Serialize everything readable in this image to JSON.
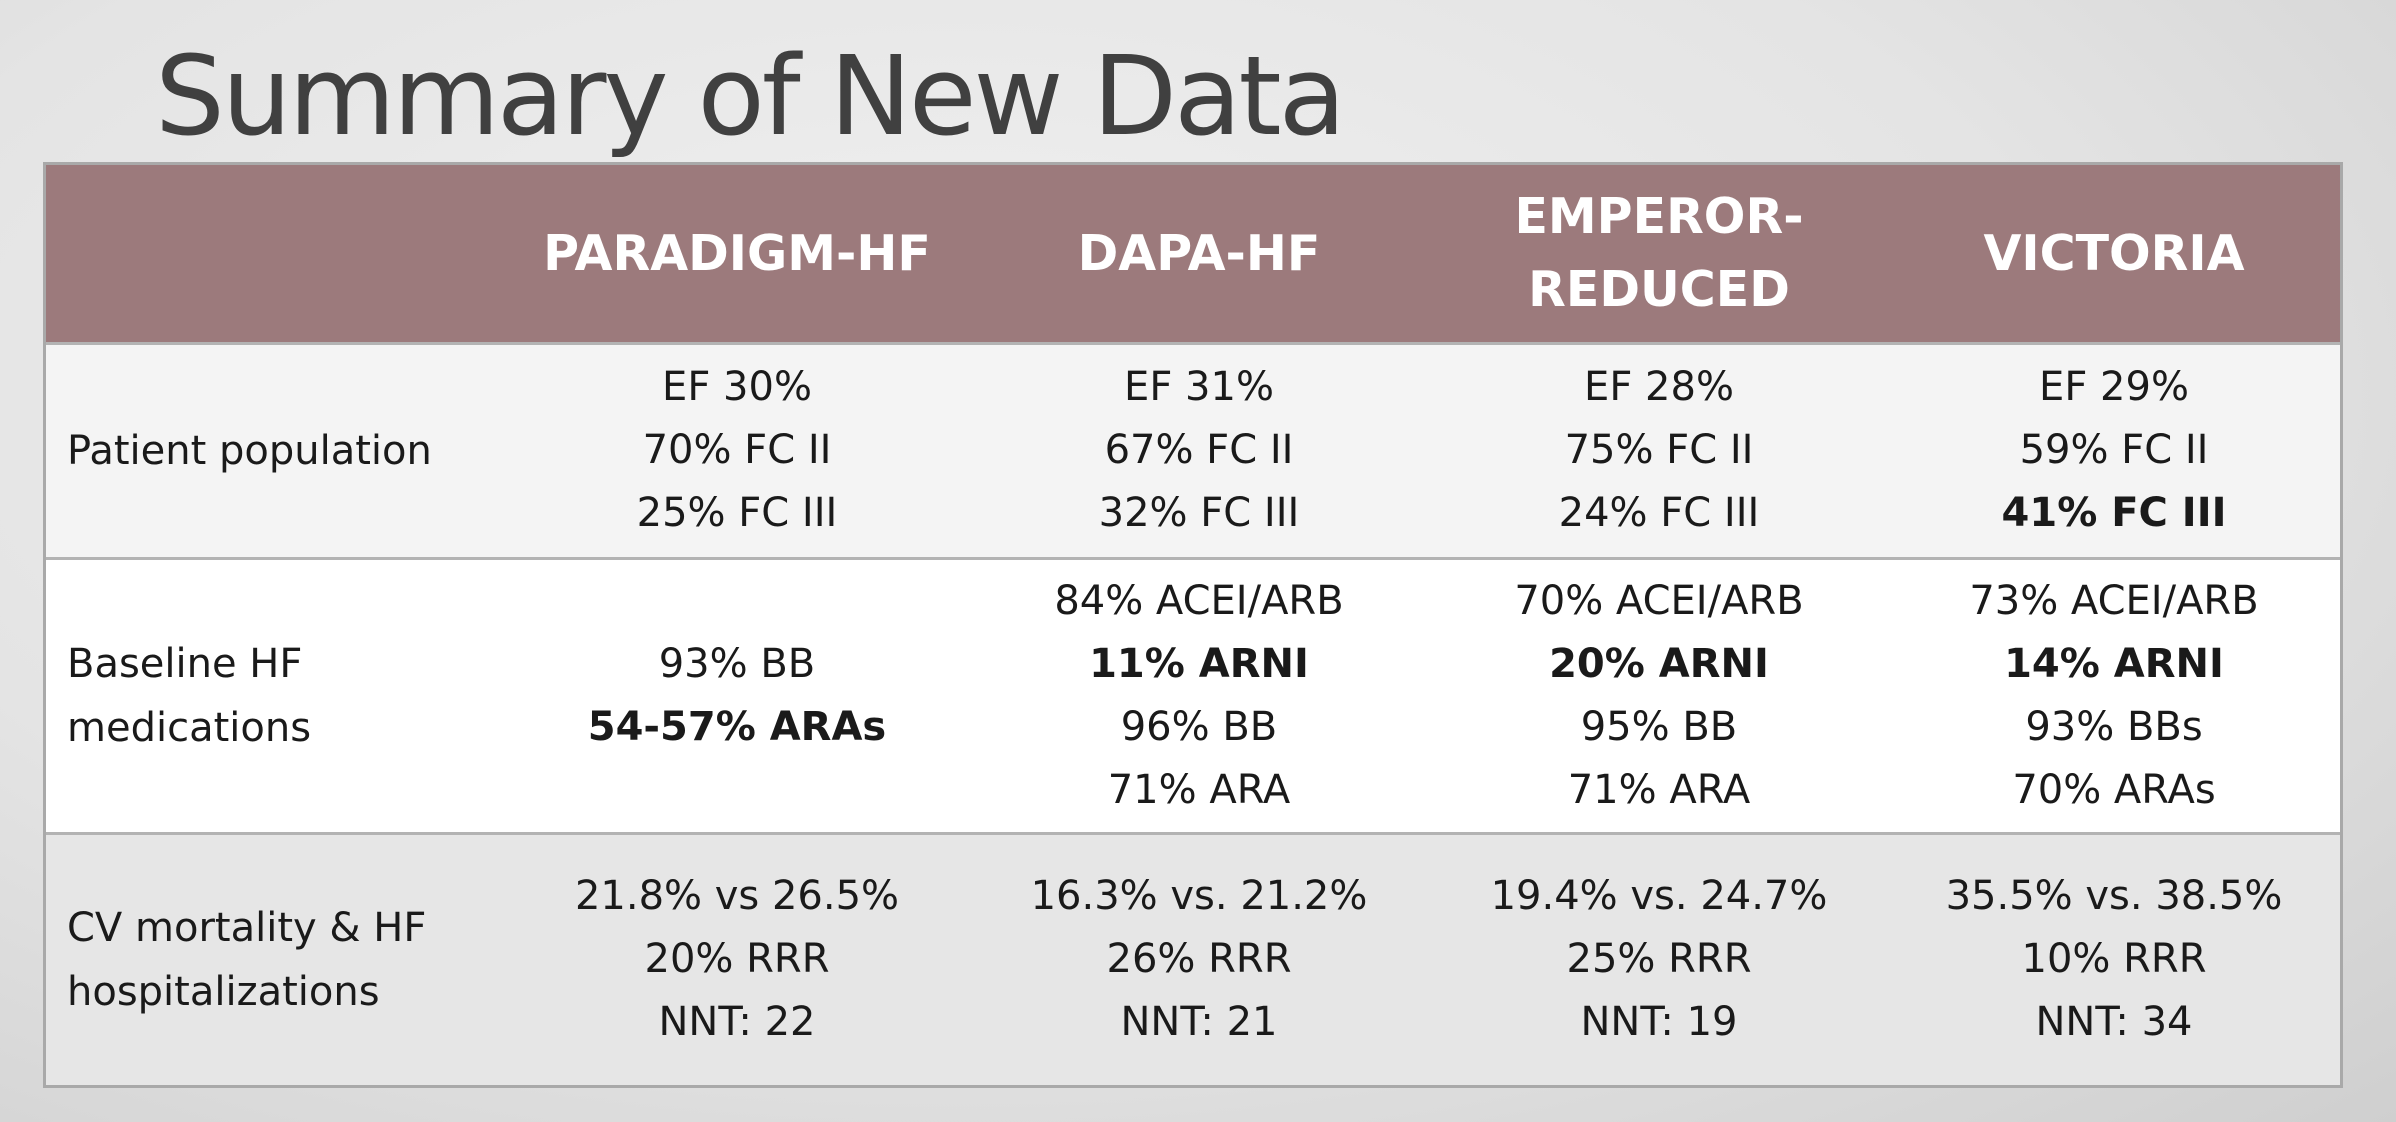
{
  "title": "Summary of New Data",
  "table": {
    "headers": [
      "",
      "PARADIGM-HF",
      "DAPA-HF",
      "EMPEROR-\nREDUCED",
      "VICTORIA"
    ],
    "rows": [
      {
        "label": "Patient population",
        "cells": [
          [
            {
              "text": "EF 30%",
              "bold": false
            },
            {
              "text": "70% FC II",
              "bold": false
            },
            {
              "text": "25% FC III",
              "bold": false
            }
          ],
          [
            {
              "text": "EF 31%",
              "bold": false
            },
            {
              "text": "67% FC II",
              "bold": false
            },
            {
              "text": "32% FC III",
              "bold": false
            }
          ],
          [
            {
              "text": "EF 28%",
              "bold": false
            },
            {
              "text": "75% FC II",
              "bold": false
            },
            {
              "text": "24% FC III",
              "bold": false
            }
          ],
          [
            {
              "text": "EF 29%",
              "bold": false
            },
            {
              "text": "59% FC II",
              "bold": false
            },
            {
              "text": "41% FC III",
              "bold": true
            }
          ]
        ]
      },
      {
        "label": "Baseline HF\nmedications",
        "cells": [
          [
            {
              "text": "93% BB",
              "bold": false
            },
            {
              "text": "54-57% ARAs",
              "bold": true
            }
          ],
          [
            {
              "text": "84% ACEI/ARB",
              "bold": false
            },
            {
              "text": "11% ARNI",
              "bold": true
            },
            {
              "text": "96% BB",
              "bold": false
            },
            {
              "text": "71% ARA",
              "bold": false
            }
          ],
          [
            {
              "text": "70% ACEI/ARB",
              "bold": false
            },
            {
              "text": "20% ARNI",
              "bold": true
            },
            {
              "text": "95% BB",
              "bold": false
            },
            {
              "text": "71% ARA",
              "bold": false
            }
          ],
          [
            {
              "text": "73% ACEI/ARB",
              "bold": false
            },
            {
              "text": "14% ARNI",
              "bold": true
            },
            {
              "text": "93% BBs",
              "bold": false
            },
            {
              "text": "70% ARAs",
              "bold": false
            }
          ]
        ]
      },
      {
        "label": "CV mortality & HF\nhospitalizations",
        "cells": [
          [
            {
              "text": "21.8% vs 26.5%",
              "bold": false
            },
            {
              "text": "20% RRR",
              "bold": false
            },
            {
              "text": "NNT: 22",
              "bold": false
            }
          ],
          [
            {
              "text": "16.3% vs. 21.2%",
              "bold": false
            },
            {
              "text": "26% RRR",
              "bold": false
            },
            {
              "text": "NNT: 21",
              "bold": false
            }
          ],
          [
            {
              "text": "19.4% vs. 24.7%",
              "bold": false
            },
            {
              "text": "25% RRR",
              "bold": false
            },
            {
              "text": "NNT: 19",
              "bold": false
            }
          ],
          [
            {
              "text": "35.5% vs. 38.5%",
              "bold": false
            },
            {
              "text": "10% RRR",
              "bold": false
            },
            {
              "text": "NNT: 34",
              "bold": false
            }
          ]
        ]
      }
    ]
  },
  "colors": {
    "header_bg": "#9c7a7c",
    "header_text": "#ffffff",
    "title_text": "#404040",
    "row1_bg": "#f4f4f4",
    "row2_bg": "#ffffff",
    "row3_bg": "#e6e6e6"
  }
}
